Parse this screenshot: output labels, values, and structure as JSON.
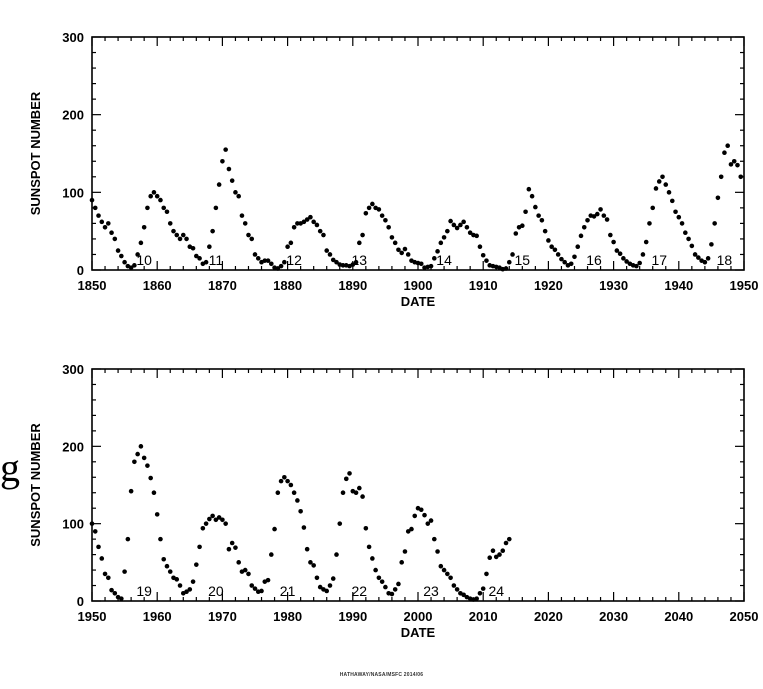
{
  "stray_glyph": "g",
  "credit": "HATHAWAY/NASA/MSFC 2014/06",
  "chart_data": [
    {
      "type": "scatter",
      "title": "",
      "xlabel": "DATE",
      "ylabel": "SUNSPOT NUMBER",
      "xlim": [
        1850,
        1950
      ],
      "ylim": [
        0,
        300
      ],
      "xticks": [
        1850,
        1860,
        1870,
        1880,
        1890,
        1900,
        1910,
        1920,
        1930,
        1940,
        1950
      ],
      "yticks": [
        0,
        100,
        200,
        300
      ],
      "grid": false,
      "marker_color": "#000000",
      "cycles": [
        {
          "label": "10",
          "x": 1858
        },
        {
          "label": "11",
          "x": 1869
        },
        {
          "label": "12",
          "x": 1881
        },
        {
          "label": "13",
          "x": 1891
        },
        {
          "label": "14",
          "x": 1904
        },
        {
          "label": "15",
          "x": 1916
        },
        {
          "label": "16",
          "x": 1927
        },
        {
          "label": "17",
          "x": 1937
        },
        {
          "label": "18",
          "x": 1947
        }
      ],
      "points": [
        [
          1850,
          90
        ],
        [
          1850.5,
          80
        ],
        [
          1851,
          70
        ],
        [
          1851.5,
          62
        ],
        [
          1852,
          55
        ],
        [
          1852.5,
          60
        ],
        [
          1853,
          48
        ],
        [
          1853.5,
          40
        ],
        [
          1854,
          25
        ],
        [
          1854.5,
          18
        ],
        [
          1855,
          10
        ],
        [
          1855.5,
          5
        ],
        [
          1856,
          3
        ],
        [
          1856.5,
          6
        ],
        [
          1857,
          20
        ],
        [
          1857.5,
          35
        ],
        [
          1858,
          55
        ],
        [
          1858.5,
          80
        ],
        [
          1859,
          95
        ],
        [
          1859.5,
          100
        ],
        [
          1860,
          95
        ],
        [
          1860.5,
          90
        ],
        [
          1861,
          80
        ],
        [
          1861.5,
          75
        ],
        [
          1862,
          60
        ],
        [
          1862.5,
          50
        ],
        [
          1863,
          45
        ],
        [
          1863.5,
          40
        ],
        [
          1864,
          45
        ],
        [
          1864.5,
          40
        ],
        [
          1865,
          30
        ],
        [
          1865.5,
          28
        ],
        [
          1866,
          18
        ],
        [
          1866.5,
          15
        ],
        [
          1867,
          8
        ],
        [
          1867.5,
          10
        ],
        [
          1868,
          30
        ],
        [
          1868.5,
          50
        ],
        [
          1869,
          80
        ],
        [
          1869.5,
          110
        ],
        [
          1870,
          140
        ],
        [
          1870.5,
          155
        ],
        [
          1871,
          130
        ],
        [
          1871.5,
          115
        ],
        [
          1872,
          100
        ],
        [
          1872.5,
          95
        ],
        [
          1873,
          70
        ],
        [
          1873.5,
          60
        ],
        [
          1874,
          45
        ],
        [
          1874.5,
          40
        ],
        [
          1875,
          20
        ],
        [
          1875.5,
          15
        ],
        [
          1876,
          10
        ],
        [
          1876.5,
          12
        ],
        [
          1877,
          12
        ],
        [
          1877.5,
          8
        ],
        [
          1878,
          3
        ],
        [
          1878.5,
          2
        ],
        [
          1879,
          5
        ],
        [
          1879.5,
          10
        ],
        [
          1880,
          30
        ],
        [
          1880.5,
          35
        ],
        [
          1881,
          55
        ],
        [
          1881.5,
          60
        ],
        [
          1882,
          60
        ],
        [
          1882.5,
          62
        ],
        [
          1883,
          65
        ],
        [
          1883.5,
          68
        ],
        [
          1884,
          62
        ],
        [
          1884.5,
          58
        ],
        [
          1885,
          50
        ],
        [
          1885.5,
          45
        ],
        [
          1886,
          25
        ],
        [
          1886.5,
          20
        ],
        [
          1887,
          13
        ],
        [
          1887.5,
          10
        ],
        [
          1888,
          7
        ],
        [
          1888.5,
          6
        ],
        [
          1889,
          6
        ],
        [
          1889.5,
          5
        ],
        [
          1890,
          7
        ],
        [
          1890.5,
          10
        ],
        [
          1891,
          35
        ],
        [
          1891.5,
          45
        ],
        [
          1892,
          73
        ],
        [
          1892.5,
          80
        ],
        [
          1893,
          85
        ],
        [
          1893.5,
          80
        ],
        [
          1894,
          78
        ],
        [
          1894.5,
          70
        ],
        [
          1895,
          64
        ],
        [
          1895.5,
          55
        ],
        [
          1896,
          42
        ],
        [
          1896.5,
          35
        ],
        [
          1897,
          26
        ],
        [
          1897.5,
          22
        ],
        [
          1898,
          27
        ],
        [
          1898.5,
          20
        ],
        [
          1899,
          12
        ],
        [
          1899.5,
          10
        ],
        [
          1900,
          9
        ],
        [
          1900.5,
          8
        ],
        [
          1901,
          3
        ],
        [
          1901.5,
          4
        ],
        [
          1902,
          5
        ],
        [
          1902.5,
          15
        ],
        [
          1903,
          24
        ],
        [
          1903.5,
          35
        ],
        [
          1904,
          42
        ],
        [
          1904.5,
          50
        ],
        [
          1905,
          63
        ],
        [
          1905.5,
          58
        ],
        [
          1906,
          54
        ],
        [
          1906.5,
          58
        ],
        [
          1907,
          62
        ],
        [
          1907.5,
          55
        ],
        [
          1908,
          48
        ],
        [
          1908.5,
          45
        ],
        [
          1909,
          44
        ],
        [
          1909.5,
          30
        ],
        [
          1910,
          19
        ],
        [
          1910.5,
          12
        ],
        [
          1911,
          6
        ],
        [
          1911.5,
          5
        ],
        [
          1912,
          4
        ],
        [
          1912.5,
          3
        ],
        [
          1913,
          1
        ],
        [
          1913.5,
          2
        ],
        [
          1914,
          10
        ],
        [
          1914.5,
          20
        ],
        [
          1915,
          47
        ],
        [
          1915.5,
          55
        ],
        [
          1916,
          57
        ],
        [
          1916.5,
          75
        ],
        [
          1917,
          104
        ],
        [
          1917.5,
          95
        ],
        [
          1918,
          81
        ],
        [
          1918.5,
          70
        ],
        [
          1919,
          64
        ],
        [
          1919.5,
          50
        ],
        [
          1920,
          38
        ],
        [
          1920.5,
          30
        ],
        [
          1921,
          26
        ],
        [
          1921.5,
          20
        ],
        [
          1922,
          14
        ],
        [
          1922.5,
          10
        ],
        [
          1923,
          6
        ],
        [
          1923.5,
          8
        ],
        [
          1924,
          17
        ],
        [
          1924.5,
          30
        ],
        [
          1925,
          44
        ],
        [
          1925.5,
          55
        ],
        [
          1926,
          64
        ],
        [
          1926.5,
          70
        ],
        [
          1927,
          69
        ],
        [
          1927.5,
          72
        ],
        [
          1928,
          78
        ],
        [
          1928.5,
          70
        ],
        [
          1929,
          65
        ],
        [
          1929.5,
          45
        ],
        [
          1930,
          36
        ],
        [
          1930.5,
          25
        ],
        [
          1931,
          21
        ],
        [
          1931.5,
          15
        ],
        [
          1932,
          11
        ],
        [
          1932.5,
          8
        ],
        [
          1933,
          6
        ],
        [
          1933.5,
          5
        ],
        [
          1934,
          9
        ],
        [
          1934.5,
          20
        ],
        [
          1935,
          36
        ],
        [
          1935.5,
          60
        ],
        [
          1936,
          80
        ],
        [
          1936.5,
          105
        ],
        [
          1937,
          114
        ],
        [
          1937.5,
          120
        ],
        [
          1938,
          110
        ],
        [
          1938.5,
          100
        ],
        [
          1939,
          89
        ],
        [
          1939.5,
          75
        ],
        [
          1940,
          68
        ],
        [
          1940.5,
          60
        ],
        [
          1941,
          48
        ],
        [
          1941.5,
          40
        ],
        [
          1942,
          31
        ],
        [
          1942.5,
          20
        ],
        [
          1943,
          16
        ],
        [
          1943.5,
          12
        ],
        [
          1944,
          10
        ],
        [
          1944.5,
          15
        ],
        [
          1945,
          33
        ],
        [
          1945.5,
          60
        ],
        [
          1946,
          93
        ],
        [
          1946.5,
          120
        ],
        [
          1947,
          151
        ],
        [
          1947.5,
          160
        ],
        [
          1948,
          136
        ],
        [
          1948.5,
          140
        ],
        [
          1949,
          135
        ],
        [
          1949.5,
          120
        ]
      ]
    },
    {
      "type": "scatter",
      "title": "",
      "xlabel": "DATE",
      "ylabel": "SUNSPOT NUMBER",
      "xlim": [
        1950,
        2050
      ],
      "ylim": [
        0,
        300
      ],
      "xticks": [
        1950,
        1960,
        1970,
        1980,
        1990,
        2000,
        2010,
        2020,
        2030,
        2040,
        2050
      ],
      "yticks": [
        0,
        100,
        200,
        300
      ],
      "grid": false,
      "marker_color": "#000000",
      "cycles": [
        {
          "label": "19",
          "x": 1958
        },
        {
          "label": "20",
          "x": 1969
        },
        {
          "label": "21",
          "x": 1980
        },
        {
          "label": "22",
          "x": 1991
        },
        {
          "label": "23",
          "x": 2002
        },
        {
          "label": "24",
          "x": 2012
        }
      ],
      "points": [
        [
          1950,
          100
        ],
        [
          1950.5,
          90
        ],
        [
          1951,
          70
        ],
        [
          1951.5,
          55
        ],
        [
          1952,
          35
        ],
        [
          1952.5,
          30
        ],
        [
          1953,
          14
        ],
        [
          1953.5,
          10
        ],
        [
          1954,
          5
        ],
        [
          1954.5,
          3
        ],
        [
          1955,
          38
        ],
        [
          1955.5,
          80
        ],
        [
          1956,
          142
        ],
        [
          1956.5,
          180
        ],
        [
          1957,
          190
        ],
        [
          1957.5,
          200
        ],
        [
          1958,
          185
        ],
        [
          1958.5,
          175
        ],
        [
          1959,
          159
        ],
        [
          1959.5,
          140
        ],
        [
          1960,
          112
        ],
        [
          1960.5,
          80
        ],
        [
          1961,
          54
        ],
        [
          1961.5,
          45
        ],
        [
          1962,
          38
        ],
        [
          1962.5,
          30
        ],
        [
          1963,
          28
        ],
        [
          1963.5,
          20
        ],
        [
          1964,
          10
        ],
        [
          1964.5,
          12
        ],
        [
          1965,
          15
        ],
        [
          1965.5,
          25
        ],
        [
          1966,
          47
        ],
        [
          1966.5,
          70
        ],
        [
          1967,
          94
        ],
        [
          1967.5,
          100
        ],
        [
          1968,
          106
        ],
        [
          1968.5,
          110
        ],
        [
          1969,
          105
        ],
        [
          1969.5,
          108
        ],
        [
          1970,
          105
        ],
        [
          1970.5,
          100
        ],
        [
          1971,
          67
        ],
        [
          1971.5,
          75
        ],
        [
          1972,
          69
        ],
        [
          1972.5,
          50
        ],
        [
          1973,
          38
        ],
        [
          1973.5,
          40
        ],
        [
          1974,
          35
        ],
        [
          1974.5,
          20
        ],
        [
          1975,
          16
        ],
        [
          1975.5,
          12
        ],
        [
          1976,
          13
        ],
        [
          1976.5,
          25
        ],
        [
          1977,
          27
        ],
        [
          1977.5,
          60
        ],
        [
          1978,
          93
        ],
        [
          1978.5,
          140
        ],
        [
          1979,
          155
        ],
        [
          1979.5,
          160
        ],
        [
          1980,
          155
        ],
        [
          1980.5,
          150
        ],
        [
          1981,
          140
        ],
        [
          1981.5,
          130
        ],
        [
          1982,
          116
        ],
        [
          1982.5,
          95
        ],
        [
          1983,
          67
        ],
        [
          1983.5,
          50
        ],
        [
          1984,
          46
        ],
        [
          1984.5,
          30
        ],
        [
          1985,
          18
        ],
        [
          1985.5,
          15
        ],
        [
          1986,
          13
        ],
        [
          1986.5,
          20
        ],
        [
          1987,
          29
        ],
        [
          1987.5,
          60
        ],
        [
          1988,
          100
        ],
        [
          1988.5,
          140
        ],
        [
          1989,
          158
        ],
        [
          1989.5,
          165
        ],
        [
          1990,
          142
        ],
        [
          1990.5,
          140
        ],
        [
          1991,
          146
        ],
        [
          1991.5,
          135
        ],
        [
          1992,
          94
        ],
        [
          1992.5,
          70
        ],
        [
          1993,
          55
        ],
        [
          1993.5,
          40
        ],
        [
          1994,
          30
        ],
        [
          1994.5,
          25
        ],
        [
          1995,
          18
        ],
        [
          1995.5,
          10
        ],
        [
          1996,
          9
        ],
        [
          1996.5,
          15
        ],
        [
          1997,
          22
        ],
        [
          1997.5,
          50
        ],
        [
          1998,
          64
        ],
        [
          1998.5,
          90
        ],
        [
          1999,
          93
        ],
        [
          1999.5,
          110
        ],
        [
          2000,
          120
        ],
        [
          2000.5,
          118
        ],
        [
          2001,
          111
        ],
        [
          2001.5,
          100
        ],
        [
          2002,
          104
        ],
        [
          2002.5,
          80
        ],
        [
          2003,
          64
        ],
        [
          2003.5,
          45
        ],
        [
          2004,
          40
        ],
        [
          2004.5,
          35
        ],
        [
          2005,
          30
        ],
        [
          2005.5,
          20
        ],
        [
          2006,
          15
        ],
        [
          2006.5,
          10
        ],
        [
          2007,
          8
        ],
        [
          2007.5,
          5
        ],
        [
          2008,
          3
        ],
        [
          2008.5,
          2
        ],
        [
          2009,
          3
        ],
        [
          2009.5,
          10
        ],
        [
          2010,
          16
        ],
        [
          2010.5,
          35
        ],
        [
          2011,
          56
        ],
        [
          2011.5,
          65
        ],
        [
          2012,
          57
        ],
        [
          2012.5,
          60
        ],
        [
          2013,
          65
        ],
        [
          2013.5,
          75
        ],
        [
          2014,
          80
        ]
      ]
    }
  ]
}
